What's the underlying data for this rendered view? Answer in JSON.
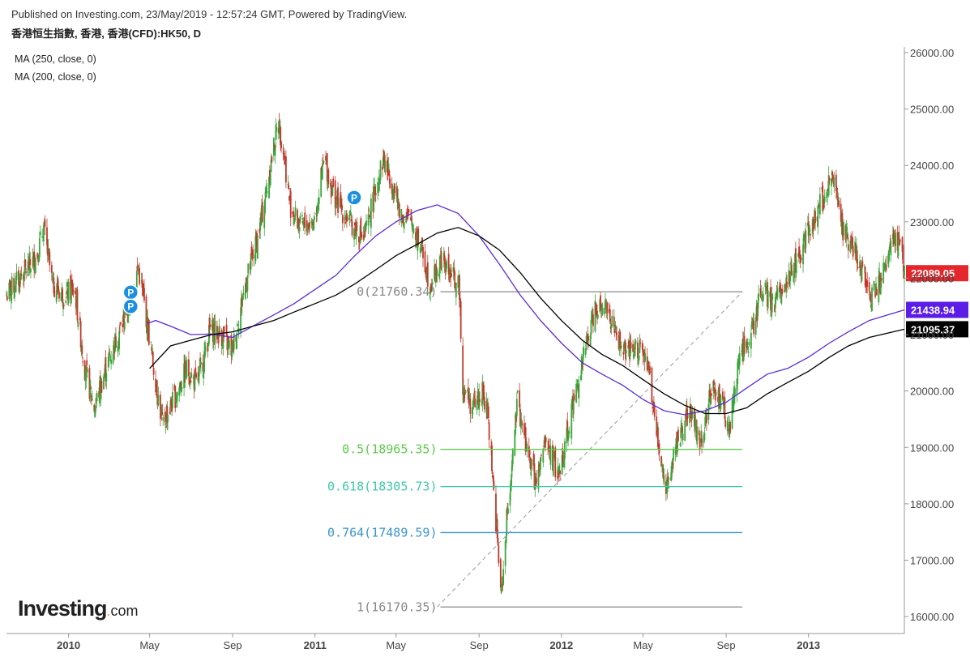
{
  "header": {
    "published": "Published on Investing.com, 23/May/2019 - 12:57:24 GMT, Powered by TradingView.",
    "symbol": "香港恒生指數, 香港, 香港(CFD):HK50, D"
  },
  "indicators": [
    {
      "label": "MA (250, close, 0)",
      "color": "#000000"
    },
    {
      "label": "MA (200, close, 0)",
      "color": "#5b2bd6"
    }
  ],
  "logo": {
    "main": "Investing",
    "dot": ".",
    "suffix": "com"
  },
  "chart_data": {
    "type": "candlestick",
    "y_axis": {
      "range": [
        15700,
        26100
      ],
      "ticks": [
        "26000.00",
        "25000.00",
        "24000.00",
        "23000.00",
        "22000.00",
        "21000.00",
        "20000.00",
        "19000.00",
        "18000.00",
        "17000.00",
        "16000.00"
      ],
      "tick_values": [
        26000,
        25000,
        24000,
        23000,
        22000,
        21000,
        20000,
        19000,
        18000,
        17000,
        16000
      ],
      "position": "right"
    },
    "x_axis": {
      "range": [
        "2009-10-01",
        "2013-05-23"
      ],
      "ticks": [
        "2010",
        "May",
        "Sep",
        "2011",
        "May",
        "Sep",
        "2012",
        "May",
        "Sep",
        "2013"
      ],
      "tick_dates": [
        "2010-01-01",
        "2010-05-01",
        "2010-09-01",
        "2011-01-01",
        "2011-05-01",
        "2011-09-01",
        "2012-01-01",
        "2012-05-01",
        "2012-09-01",
        "2013-01-01"
      ],
      "bold_ticks": [
        "2010",
        "2011",
        "2012",
        "2013"
      ]
    },
    "grid": false,
    "price_path": [
      [
        "2009-10-01",
        21700
      ],
      [
        "2009-10-20",
        22000
      ],
      [
        "2009-11-15",
        22400
      ],
      [
        "2009-11-25",
        22900
      ],
      [
        "2009-12-08",
        21900
      ],
      [
        "2009-12-25",
        21700
      ],
      [
        "2010-01-10",
        21800
      ],
      [
        "2010-01-25",
        20400
      ],
      [
        "2010-02-08",
        19700
      ],
      [
        "2010-02-25",
        20400
      ],
      [
        "2010-03-15",
        21000
      ],
      [
        "2010-04-01",
        21500
      ],
      [
        "2010-04-14",
        22200
      ],
      [
        "2010-04-25",
        21400
      ],
      [
        "2010-05-06",
        20500
      ],
      [
        "2010-05-20",
        19400
      ],
      [
        "2010-06-08",
        19900
      ],
      [
        "2010-06-25",
        20400
      ],
      [
        "2010-07-10",
        20100
      ],
      [
        "2010-07-30",
        21100
      ],
      [
        "2010-08-15",
        21000
      ],
      [
        "2010-08-31",
        20700
      ],
      [
        "2010-09-20",
        21900
      ],
      [
        "2010-10-08",
        22700
      ],
      [
        "2010-10-20",
        23500
      ],
      [
        "2010-11-08",
        24800
      ],
      [
        "2010-11-15",
        24300
      ],
      [
        "2010-11-25",
        23300
      ],
      [
        "2010-12-10",
        22900
      ],
      [
        "2010-12-30",
        23000
      ],
      [
        "2011-01-15",
        24100
      ],
      [
        "2011-01-28",
        23500
      ],
      [
        "2011-02-10",
        23200
      ],
      [
        "2011-02-28",
        22900
      ],
      [
        "2011-03-15",
        22700
      ],
      [
        "2011-04-01",
        23600
      ],
      [
        "2011-04-12",
        24100
      ],
      [
        "2011-04-25",
        23700
      ],
      [
        "2011-05-10",
        23100
      ],
      [
        "2011-05-25",
        23000
      ],
      [
        "2011-06-08",
        22500
      ],
      [
        "2011-06-20",
        21900
      ],
      [
        "2011-07-08",
        22300
      ],
      [
        "2011-07-25",
        22000
      ],
      [
        "2011-08-03",
        21800
      ],
      [
        "2011-08-08",
        20100
      ],
      [
        "2011-08-22",
        19700
      ],
      [
        "2011-09-05",
        20000
      ],
      [
        "2011-09-15",
        19500
      ],
      [
        "2011-09-26",
        17700
      ],
      [
        "2011-10-04",
        16350
      ],
      [
        "2011-10-12",
        17700
      ],
      [
        "2011-10-28",
        19800
      ],
      [
        "2011-11-10",
        19000
      ],
      [
        "2011-11-25",
        18300
      ],
      [
        "2011-12-08",
        19100
      ],
      [
        "2011-12-28",
        18500
      ],
      [
        "2012-01-15",
        19600
      ],
      [
        "2012-02-01",
        20500
      ],
      [
        "2012-02-20",
        21500
      ],
      [
        "2012-03-05",
        21600
      ],
      [
        "2012-03-20",
        21000
      ],
      [
        "2012-04-08",
        20600
      ],
      [
        "2012-04-25",
        20800
      ],
      [
        "2012-05-10",
        20300
      ],
      [
        "2012-05-25",
        18900
      ],
      [
        "2012-06-05",
        18300
      ],
      [
        "2012-06-20",
        19100
      ],
      [
        "2012-07-08",
        19700
      ],
      [
        "2012-07-25",
        19100
      ],
      [
        "2012-08-10",
        20000
      ],
      [
        "2012-08-25",
        19900
      ],
      [
        "2012-09-05",
        19200
      ],
      [
        "2012-09-20",
        20600
      ],
      [
        "2012-10-08",
        21000
      ],
      [
        "2012-10-25",
        21800
      ],
      [
        "2012-11-10",
        21500
      ],
      [
        "2012-11-25",
        21900
      ],
      [
        "2012-12-10",
        22200
      ],
      [
        "2012-12-25",
        22600
      ],
      [
        "2013-01-10",
        23100
      ],
      [
        "2013-01-30",
        23600
      ],
      [
        "2013-02-05",
        23800
      ],
      [
        "2013-02-20",
        22900
      ],
      [
        "2013-03-05",
        22600
      ],
      [
        "2013-03-20",
        22200
      ],
      [
        "2013-04-05",
        21700
      ],
      [
        "2013-04-20",
        22000
      ],
      [
        "2013-05-05",
        22600
      ],
      [
        "2013-05-15",
        22700
      ],
      [
        "2013-05-23",
        22089
      ]
    ],
    "series": [
      {
        "name": "MA (200, close, 0)",
        "color": "#5b2bd6",
        "points": [
          [
            "2010-04-28",
            21200
          ],
          [
            "2010-05-10",
            21250
          ],
          [
            "2010-06-01",
            21150
          ],
          [
            "2010-07-01",
            21000
          ],
          [
            "2010-08-01",
            21010
          ],
          [
            "2010-09-01",
            20950
          ],
          [
            "2010-10-01",
            21150
          ],
          [
            "2010-11-01",
            21350
          ],
          [
            "2010-12-01",
            21550
          ],
          [
            "2011-01-01",
            21800
          ],
          [
            "2011-02-01",
            22050
          ],
          [
            "2011-03-01",
            22400
          ],
          [
            "2011-04-01",
            22750
          ],
          [
            "2011-05-01",
            23000
          ],
          [
            "2011-06-01",
            23200
          ],
          [
            "2011-07-01",
            23300
          ],
          [
            "2011-08-01",
            23150
          ],
          [
            "2011-09-01",
            22750
          ],
          [
            "2011-10-01",
            22250
          ],
          [
            "2011-11-01",
            21700
          ],
          [
            "2011-12-01",
            21250
          ],
          [
            "2012-01-01",
            20850
          ],
          [
            "2012-02-01",
            20500
          ],
          [
            "2012-03-01",
            20300
          ],
          [
            "2012-04-01",
            20100
          ],
          [
            "2012-05-01",
            19850
          ],
          [
            "2012-06-01",
            19650
          ],
          [
            "2012-07-01",
            19580
          ],
          [
            "2012-08-01",
            19650
          ],
          [
            "2012-09-01",
            19800
          ],
          [
            "2012-10-01",
            20050
          ],
          [
            "2012-11-01",
            20300
          ],
          [
            "2012-12-01",
            20400
          ],
          [
            "2013-01-01",
            20600
          ],
          [
            "2013-02-01",
            20850
          ],
          [
            "2013-03-01",
            21050
          ],
          [
            "2013-04-01",
            21250
          ],
          [
            "2013-05-23",
            21439
          ]
        ]
      },
      {
        "name": "MA (250, close, 0)",
        "color": "#000000",
        "points": [
          [
            "2010-05-01",
            20400
          ],
          [
            "2010-06-01",
            20800
          ],
          [
            "2010-07-01",
            20900
          ],
          [
            "2010-08-01",
            21000
          ],
          [
            "2010-09-01",
            21050
          ],
          [
            "2010-10-01",
            21150
          ],
          [
            "2010-11-01",
            21250
          ],
          [
            "2010-12-01",
            21400
          ],
          [
            "2011-01-01",
            21550
          ],
          [
            "2011-02-01",
            21700
          ],
          [
            "2011-03-01",
            21900
          ],
          [
            "2011-04-01",
            22150
          ],
          [
            "2011-05-01",
            22400
          ],
          [
            "2011-06-01",
            22600
          ],
          [
            "2011-07-01",
            22800
          ],
          [
            "2011-08-01",
            22900
          ],
          [
            "2011-09-01",
            22750
          ],
          [
            "2011-10-01",
            22500
          ],
          [
            "2011-11-01",
            22100
          ],
          [
            "2011-12-01",
            21650
          ],
          [
            "2012-01-01",
            21250
          ],
          [
            "2012-02-01",
            20900
          ],
          [
            "2012-03-01",
            20650
          ],
          [
            "2012-04-01",
            20450
          ],
          [
            "2012-05-01",
            20200
          ],
          [
            "2012-06-01",
            19950
          ],
          [
            "2012-07-01",
            19750
          ],
          [
            "2012-08-01",
            19600
          ],
          [
            "2012-09-01",
            19600
          ],
          [
            "2012-10-01",
            19700
          ],
          [
            "2012-11-01",
            19950
          ],
          [
            "2012-12-01",
            20150
          ],
          [
            "2013-01-01",
            20350
          ],
          [
            "2013-02-01",
            20600
          ],
          [
            "2013-03-01",
            20800
          ],
          [
            "2013-04-01",
            20950
          ],
          [
            "2013-05-23",
            21095
          ]
        ]
      }
    ],
    "fibonacci": {
      "from": [
        "2011-07-01",
        16170.35
      ],
      "to": [
        "2012-09-25",
        21760.35
      ],
      "line_end": "2012-09-25",
      "levels": [
        {
          "label": "0(21760.34)",
          "value": 21760.34,
          "color": "#888888"
        },
        {
          "label": "0.5(18965.35)",
          "value": 18965.35,
          "color": "#5dcc4a"
        },
        {
          "label": "0.618(18305.73)",
          "value": 18305.73,
          "color": "#3fc9a6"
        },
        {
          "label": "0.764(17489.59)",
          "value": 17489.59,
          "color": "#3a95cc"
        },
        {
          "label": "1(16170.35)",
          "value": 16170.35,
          "color": "#888888"
        }
      ]
    },
    "markers": [
      {
        "label": "P",
        "date": "2010-04-03",
        "value": 21750
      },
      {
        "label": "P",
        "date": "2010-04-03",
        "value": 21500
      },
      {
        "label": "P",
        "date": "2011-02-28",
        "value": 23430
      }
    ],
    "price_tags": [
      {
        "label": "22089.05",
        "value": 22089.05,
        "color": "#e5262b"
      },
      {
        "label": "21438.94",
        "value": 21438.94,
        "color": "#5b1ce8"
      },
      {
        "label": "21095.37",
        "value": 21095.37,
        "color": "#000000"
      }
    ],
    "colors": {
      "up": "#3aa53a",
      "down": "#c0392b",
      "grid_axis": "#9a9a9a"
    }
  }
}
